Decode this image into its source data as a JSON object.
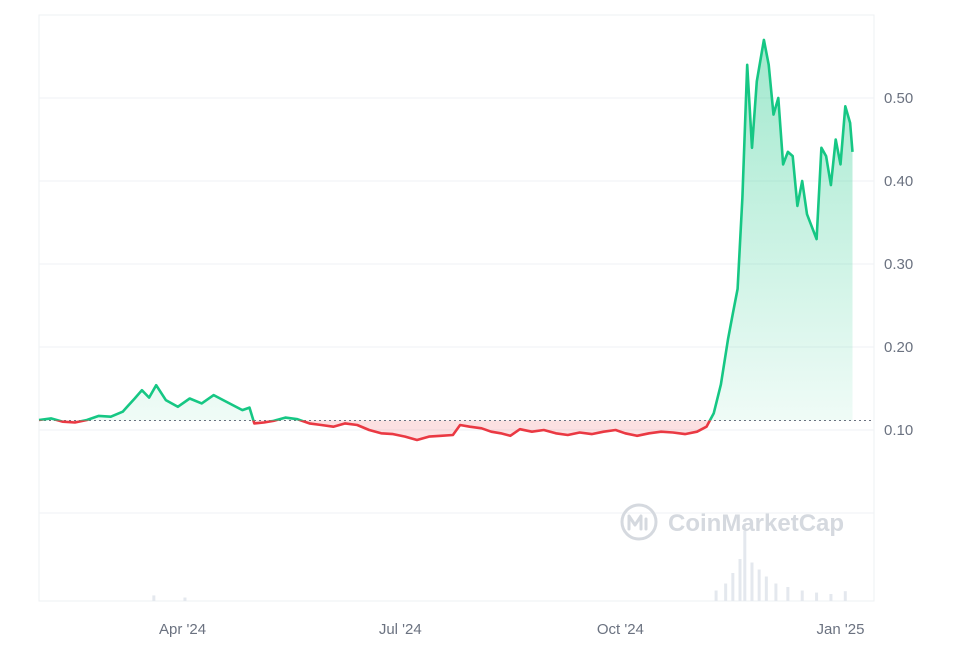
{
  "watermark": {
    "text": "CoinMarketCap"
  },
  "colors": {
    "up": "#16c784",
    "down": "#ea3943",
    "grid": "#eff2f5",
    "axis_text": "#6b7280",
    "baseline": "#6b7280",
    "volume": "#e4e8ee"
  },
  "chart_data": {
    "type": "line",
    "title": "",
    "xlabel": "",
    "ylabel": "",
    "x_range": [
      "2024-02-01",
      "2025-01-15"
    ],
    "ylim": [
      0,
      0.6
    ],
    "y_ticks": [
      0.1,
      0.2,
      0.3,
      0.4,
      0.5
    ],
    "y_tick_labels": [
      "0.10",
      "0.20",
      "0.30",
      "0.40",
      "0.50"
    ],
    "x_ticks": [
      "2024-04-01",
      "2024-07-01",
      "2024-10-01",
      "2025-01-01"
    ],
    "x_tick_labels": [
      "Apr '24",
      "Jul '24",
      "Oct '24",
      "Jan '25"
    ],
    "baseline": 0.1115,
    "grid": true,
    "fill": "up-green / down-red relative to baseline",
    "series": [
      {
        "points": [
          [
            "2024-02-01",
            0.112
          ],
          [
            "2024-02-06",
            0.114
          ],
          [
            "2024-02-11",
            0.11
          ],
          [
            "2024-02-16",
            0.109
          ],
          [
            "2024-02-21",
            0.112
          ],
          [
            "2024-02-26",
            0.117
          ],
          [
            "2024-03-02",
            0.116
          ],
          [
            "2024-03-07",
            0.122
          ],
          [
            "2024-03-12",
            0.138
          ],
          [
            "2024-03-15",
            0.148
          ],
          [
            "2024-03-18",
            0.139
          ],
          [
            "2024-03-21",
            0.154
          ],
          [
            "2024-03-25",
            0.136
          ],
          [
            "2024-03-30",
            0.128
          ],
          [
            "2024-04-04",
            0.138
          ],
          [
            "2024-04-09",
            0.132
          ],
          [
            "2024-04-14",
            0.142
          ],
          [
            "2024-04-18",
            0.136
          ],
          [
            "2024-04-22",
            0.13
          ],
          [
            "2024-04-26",
            0.124
          ],
          [
            "2024-04-29",
            0.127
          ],
          [
            "2024-05-01",
            0.108
          ],
          [
            "2024-05-05",
            0.109
          ],
          [
            "2024-05-09",
            0.111
          ],
          [
            "2024-05-14",
            0.115
          ],
          [
            "2024-05-19",
            0.113
          ],
          [
            "2024-05-24",
            0.108
          ],
          [
            "2024-05-29",
            0.106
          ],
          [
            "2024-06-03",
            0.104
          ],
          [
            "2024-06-08",
            0.108
          ],
          [
            "2024-06-13",
            0.106
          ],
          [
            "2024-06-18",
            0.1
          ],
          [
            "2024-06-23",
            0.096
          ],
          [
            "2024-06-28",
            0.095
          ],
          [
            "2024-07-03",
            0.092
          ],
          [
            "2024-07-08",
            0.088
          ],
          [
            "2024-07-13",
            0.092
          ],
          [
            "2024-07-18",
            0.093
          ],
          [
            "2024-07-23",
            0.094
          ],
          [
            "2024-07-26",
            0.106
          ],
          [
            "2024-07-30",
            0.104
          ],
          [
            "2024-08-04",
            0.102
          ],
          [
            "2024-08-08",
            0.098
          ],
          [
            "2024-08-12",
            0.096
          ],
          [
            "2024-08-16",
            0.093
          ],
          [
            "2024-08-20",
            0.101
          ],
          [
            "2024-08-25",
            0.098
          ],
          [
            "2024-08-30",
            0.1
          ],
          [
            "2024-09-04",
            0.096
          ],
          [
            "2024-09-09",
            0.094
          ],
          [
            "2024-09-14",
            0.097
          ],
          [
            "2024-09-19",
            0.095
          ],
          [
            "2024-09-24",
            0.098
          ],
          [
            "2024-09-29",
            0.1
          ],
          [
            "2024-10-03",
            0.096
          ],
          [
            "2024-10-08",
            0.093
          ],
          [
            "2024-10-13",
            0.096
          ],
          [
            "2024-10-18",
            0.098
          ],
          [
            "2024-10-23",
            0.097
          ],
          [
            "2024-10-28",
            0.095
          ],
          [
            "2024-11-02",
            0.098
          ],
          [
            "2024-11-06",
            0.104
          ],
          [
            "2024-11-09",
            0.12
          ],
          [
            "2024-11-12",
            0.155
          ],
          [
            "2024-11-15",
            0.21
          ],
          [
            "2024-11-17",
            0.24
          ],
          [
            "2024-11-19",
            0.27
          ],
          [
            "2024-11-21",
            0.38
          ],
          [
            "2024-11-23",
            0.54
          ],
          [
            "2024-11-25",
            0.44
          ],
          [
            "2024-11-27",
            0.52
          ],
          [
            "2024-11-30",
            0.57
          ],
          [
            "2024-12-02",
            0.54
          ],
          [
            "2024-12-04",
            0.48
          ],
          [
            "2024-12-06",
            0.5
          ],
          [
            "2024-12-08",
            0.42
          ],
          [
            "2024-12-10",
            0.435
          ],
          [
            "2024-12-12",
            0.43
          ],
          [
            "2024-12-14",
            0.37
          ],
          [
            "2024-12-16",
            0.4
          ],
          [
            "2024-12-18",
            0.36
          ],
          [
            "2024-12-20",
            0.345
          ],
          [
            "2024-12-22",
            0.33
          ],
          [
            "2024-12-24",
            0.44
          ],
          [
            "2024-12-26",
            0.43
          ],
          [
            "2024-12-28",
            0.395
          ],
          [
            "2024-12-30",
            0.45
          ],
          [
            "2025-01-01",
            0.42
          ],
          [
            "2025-01-03",
            0.49
          ],
          [
            "2025-01-05",
            0.47
          ],
          [
            "2025-01-06",
            0.435
          ]
        ]
      }
    ],
    "volume": {
      "type": "bar",
      "points": [
        [
          "2024-03-20",
          0.08
        ],
        [
          "2024-04-02",
          0.05
        ],
        [
          "2024-11-10",
          0.15
        ],
        [
          "2024-11-14",
          0.25
        ],
        [
          "2024-11-17",
          0.4
        ],
        [
          "2024-11-20",
          0.6
        ],
        [
          "2024-11-22",
          1.0
        ],
        [
          "2024-11-25",
          0.55
        ],
        [
          "2024-11-28",
          0.45
        ],
        [
          "2024-12-01",
          0.35
        ],
        [
          "2024-12-05",
          0.25
        ],
        [
          "2024-12-10",
          0.2
        ],
        [
          "2024-12-16",
          0.15
        ],
        [
          "2024-12-22",
          0.12
        ],
        [
          "2024-12-28",
          0.1
        ],
        [
          "2025-01-03",
          0.14
        ]
      ]
    }
  }
}
